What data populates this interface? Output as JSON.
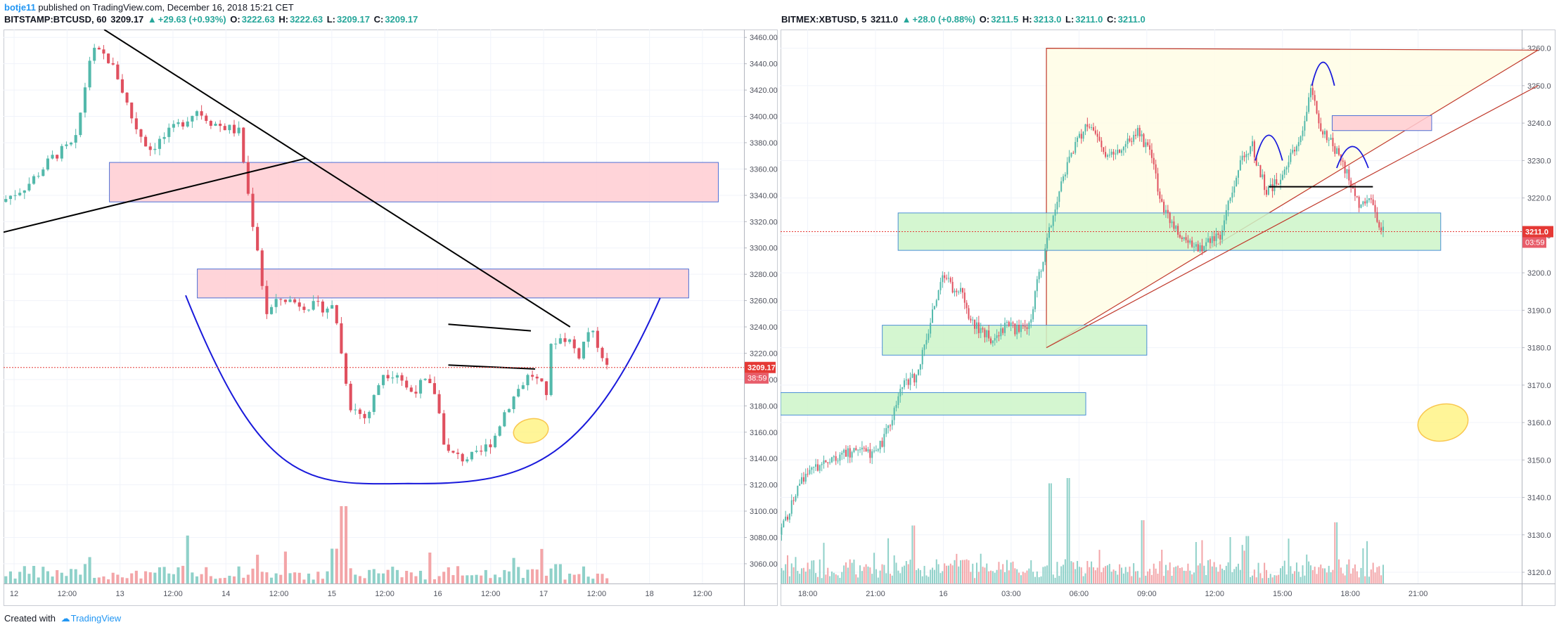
{
  "header": {
    "author": "botje11",
    "published": "published on TradingView.com, December 16, 2018 15:21 CET"
  },
  "footer": {
    "created_with": "Created with",
    "brand": "TradingView"
  },
  "colors": {
    "up": "#53b9ab",
    "down": "#e0505f",
    "vol_up": "#8fd1c9",
    "vol_down": "#f3a5a8",
    "price_line": "#e53935",
    "pink_zone": "#ffcdd2",
    "pink_border": "#4d6fd6",
    "green_zone": "#ccf5c8",
    "green_border": "#4a8fd6",
    "curve": "#1a1adb",
    "triangle_fill": "#fffde7",
    "triangle_stroke": "#c0392b",
    "ellipse": "#fff176"
  },
  "charts": [
    {
      "symbol": "BITSTAMP:BTCUSD, 60",
      "last": "3209.17",
      "change": "+29.63 (+0.93%)",
      "o": "3222.63",
      "h": "3222.63",
      "l": "3209.17",
      "c": "3209.17",
      "price_label": "3209.17",
      "countdown": "38:59",
      "y_ticks": [
        "3460.00",
        "3440.00",
        "3420.00",
        "3400.00",
        "3380.00",
        "3360.00",
        "3340.00",
        "3320.00",
        "3300.00",
        "3280.00",
        "3260.00",
        "3240.00",
        "3220.00",
        "3200.00",
        "3180.00",
        "3160.00",
        "3140.00",
        "3120.00",
        "3100.00",
        "3080.00",
        "3060.00"
      ],
      "x_ticks": [
        "12",
        "12:00",
        "13",
        "12:00",
        "14",
        "12:00",
        "15",
        "12:00",
        "16",
        "12:00",
        "17",
        "12:00",
        "18",
        "12:00"
      ]
    },
    {
      "symbol": "BITMEX:XBTUSD, 5",
      "last": "3211.0",
      "change": "+28.0 (+0.88%)",
      "o": "3211.5",
      "h": "3213.0",
      "l": "3211.0",
      "c": "3211.0",
      "price_label": "3211.0",
      "countdown": "03:59",
      "y_ticks": [
        "3260.0",
        "3250.0",
        "3240.0",
        "3230.0",
        "3220.0",
        "3210.0",
        "3200.0",
        "3190.0",
        "3180.0",
        "3170.0",
        "3160.0",
        "3150.0",
        "3140.0",
        "3130.0",
        "3120.0"
      ],
      "x_ticks": [
        "18:00",
        "21:00",
        "16",
        "03:00",
        "06:00",
        "09:00",
        "12:00",
        "15:00",
        "18:00",
        "21:00"
      ]
    }
  ],
  "chart_data": [
    {
      "type": "candlestick",
      "title": "BITSTAMP:BTCUSD, 60",
      "ylim": [
        3045,
        3466
      ],
      "x_range": [
        "12 00:00",
        "18 12:00"
      ],
      "interval": "60",
      "last_price": 3209.17,
      "close_path": [
        [
          0,
          3335
        ],
        [
          0.25,
          3348
        ],
        [
          0.5,
          3370
        ],
        [
          0.7,
          3380
        ],
        [
          0.85,
          3450
        ],
        [
          1.0,
          3445
        ],
        [
          1.1,
          3430
        ],
        [
          1.25,
          3395
        ],
        [
          1.4,
          3375
        ],
        [
          1.55,
          3385
        ],
        [
          1.7,
          3395
        ],
        [
          1.85,
          3405
        ],
        [
          2.0,
          3395
        ],
        [
          2.25,
          3388
        ],
        [
          2.35,
          3330
        ],
        [
          2.42,
          3300
        ],
        [
          2.5,
          3250
        ],
        [
          2.65,
          3262
        ],
        [
          2.8,
          3258
        ],
        [
          3.0,
          3255
        ],
        [
          3.15,
          3255
        ],
        [
          3.2,
          3225
        ],
        [
          3.3,
          3180
        ],
        [
          3.45,
          3170
        ],
        [
          3.6,
          3205
        ],
        [
          3.75,
          3205
        ],
        [
          3.85,
          3190
        ],
        [
          4.0,
          3198
        ],
        [
          4.1,
          3190
        ],
        [
          4.2,
          3145
        ],
        [
          4.35,
          3140
        ],
        [
          4.5,
          3142
        ],
        [
          4.65,
          3155
        ],
        [
          4.75,
          3175
        ],
        [
          4.9,
          3195
        ],
        [
          5.0,
          3205
        ],
        [
          5.15,
          3190
        ],
        [
          5.2,
          3230
        ],
        [
          5.35,
          3232
        ],
        [
          5.45,
          3218
        ],
        [
          5.55,
          3238
        ],
        [
          5.65,
          3225
        ],
        [
          5.72,
          3209
        ]
      ],
      "volume_spikes": [
        [
          3.18,
          1.0
        ],
        [
          1.72,
          0.62
        ],
        [
          3.1,
          0.45
        ],
        [
          4.0,
          0.4
        ],
        [
          5.2,
          0.25
        ]
      ],
      "annotations": [
        {
          "kind": "zone",
          "color": "pink",
          "price": [
            3335,
            3365
          ],
          "x": [
            1.0,
            6.75
          ]
        },
        {
          "kind": "zone",
          "color": "pink",
          "price": [
            3262,
            3284
          ],
          "x": [
            1.83,
            6.47
          ]
        },
        {
          "kind": "trendline",
          "from": [
            0.95,
            3466
          ],
          "to": [
            5.35,
            3240
          ]
        },
        {
          "kind": "trendline",
          "from": [
            0,
            3312
          ],
          "to": [
            2.85,
            3368
          ]
        },
        {
          "kind": "trendline",
          "from": [
            4.2,
            3242
          ],
          "to": [
            4.98,
            3237
          ]
        },
        {
          "kind": "trendline",
          "from": [
            4.2,
            3211
          ],
          "to": [
            5.02,
            3208
          ]
        },
        {
          "kind": "curve",
          "from": [
            1.72,
            3264
          ],
          "bottom": [
            3.82,
            3121
          ],
          "to": [
            6.2,
            3262
          ]
        },
        {
          "kind": "ellipse",
          "center": [
            4.98,
            3161
          ]
        }
      ]
    },
    {
      "type": "candlestick",
      "title": "BITMEX:XBTUSD, 5",
      "ylim": [
        3117,
        3265
      ],
      "x_range": [
        "15 16:30",
        "16 21:30"
      ],
      "interval": "5",
      "last_price": 3211.0,
      "close_path": [
        [
          0,
          3130
        ],
        [
          0.5,
          3145
        ],
        [
          1.0,
          3150
        ],
        [
          1.5,
          3152
        ],
        [
          2.0,
          3152
        ],
        [
          2.3,
          3155
        ],
        [
          2.5,
          3162
        ],
        [
          2.7,
          3170
        ],
        [
          3.0,
          3172
        ],
        [
          3.2,
          3180
        ],
        [
          3.4,
          3190
        ],
        [
          3.65,
          3200
        ],
        [
          3.8,
          3196
        ],
        [
          4.0,
          3195
        ],
        [
          4.2,
          3188
        ],
        [
          4.4,
          3185
        ],
        [
          4.75,
          3182
        ],
        [
          5.0,
          3186
        ],
        [
          5.2,
          3185
        ],
        [
          5.4,
          3186
        ],
        [
          5.55,
          3185
        ],
        [
          5.65,
          3195
        ],
        [
          5.85,
          3205
        ],
        [
          6.1,
          3218
        ],
        [
          6.35,
          3228
        ],
        [
          6.55,
          3235
        ],
        [
          6.85,
          3240
        ],
        [
          7.2,
          3231
        ],
        [
          7.55,
          3232
        ],
        [
          7.9,
          3238
        ],
        [
          8.2,
          3232
        ],
        [
          8.45,
          3218
        ],
        [
          8.75,
          3212
        ],
        [
          9.0,
          3209
        ],
        [
          9.3,
          3206
        ],
        [
          9.55,
          3209
        ],
        [
          9.75,
          3210
        ],
        [
          10.0,
          3222
        ],
        [
          10.25,
          3232
        ],
        [
          10.45,
          3234
        ],
        [
          10.75,
          3222
        ],
        [
          11.0,
          3224
        ],
        [
          11.25,
          3230
        ],
        [
          11.5,
          3236
        ],
        [
          11.75,
          3248
        ],
        [
          12.0,
          3238
        ],
        [
          12.2,
          3235
        ],
        [
          12.4,
          3230
        ],
        [
          12.65,
          3224
        ],
        [
          12.85,
          3217
        ],
        [
          13.05,
          3220
        ],
        [
          13.25,
          3212
        ],
        [
          13.35,
          3211
        ]
      ],
      "volume_spikes": [
        [
          5.95,
          0.95
        ],
        [
          6.35,
          1.0
        ],
        [
          2.9,
          0.55
        ],
        [
          8.0,
          0.6
        ],
        [
          12.25,
          0.58
        ],
        [
          10.3,
          0.45
        ]
      ],
      "annotations": [
        {
          "kind": "zone",
          "color": "green",
          "price": [
            3162,
            3168
          ],
          "x": [
            0,
            6.75
          ]
        },
        {
          "kind": "zone",
          "color": "green",
          "price": [
            3178,
            3186
          ],
          "x": [
            2.25,
            8.1
          ]
        },
        {
          "kind": "zone",
          "color": "green",
          "price": [
            3206,
            3216
          ],
          "x": [
            2.6,
            14.6
          ]
        },
        {
          "kind": "zone",
          "color": "pink",
          "price": [
            3238,
            3242
          ],
          "x": [
            12.2,
            14.4
          ]
        },
        {
          "kind": "triangle",
          "points": [
            [
              5.88,
              3260
            ],
            [
              5.88,
              3180
            ],
            [
              16.75,
              3259.5
            ]
          ]
        },
        {
          "kind": "trendline",
          "from": [
            5.88,
            3180
          ],
          "to": [
            16.75,
            3250
          ]
        },
        {
          "kind": "trendline",
          "from": [
            10.8,
            3223
          ],
          "to": [
            13.1,
            3223
          ]
        },
        {
          "kind": "ellipse",
          "center": [
            14.65,
            3160
          ]
        }
      ]
    }
  ]
}
